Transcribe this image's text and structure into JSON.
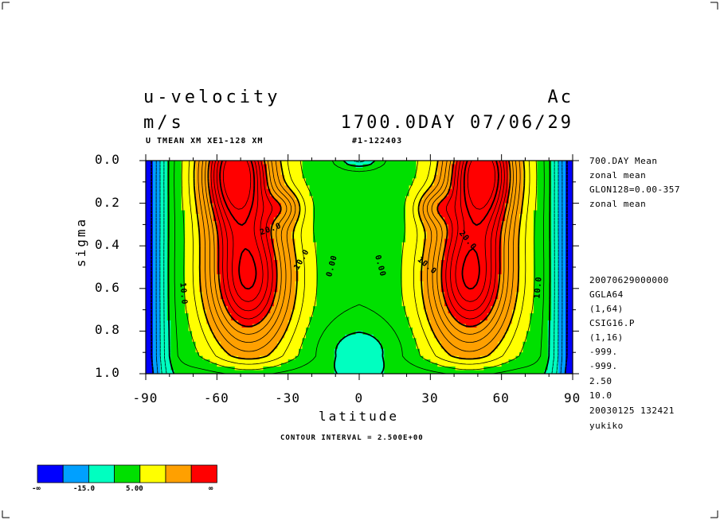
{
  "header": {
    "title_left_1": "u-velocity",
    "title_left_2": "m/s",
    "title_right_1": "Ac",
    "title_right_2": "1700.0DAY 07/06/29",
    "subtitle_left": "U TMEAN XM XE1-128 XM",
    "subtitle_right": "#1-122403"
  },
  "side_info": [
    "700.DAY Mean",
    "zonal mean",
    "GLON128=0.00-357",
    "zonal mean",
    "20070629000000",
    "GGLA64",
    "(1,64)",
    "CSIG16.P",
    "(1,16)",
    "-999.",
    "-999.",
    "2.50",
    "10.0",
    "20030125 132421",
    "yukiko"
  ],
  "contour_interval": "CONTOUR INTERVAL = 2.500E+00",
  "contour_labels": [
    "20.0",
    "10.0",
    "0.00",
    "0.00",
    "10.0",
    "20.0",
    "10.0",
    "10.0"
  ],
  "colorbar": {
    "colors": [
      "#0000ff",
      "#00a0ff",
      "#00ffc0",
      "#00e000",
      "#ffff00",
      "#ffa000",
      "#ff0000"
    ],
    "labels": [
      "-∞",
      "-15.0",
      "5.00",
      "∞"
    ]
  },
  "chart_data": {
    "type": "heatmap",
    "xlabel": "latitude",
    "ylabel": "sigma",
    "x_ticks": [
      "-90",
      "-60",
      "-30",
      "0",
      "30",
      "60",
      "90"
    ],
    "x_tick_values": [
      -90,
      -60,
      -30,
      0,
      30,
      60,
      90
    ],
    "y_ticks": [
      "0.0",
      "0.2",
      "0.4",
      "0.6",
      "0.8",
      "1.0"
    ],
    "y_tick_values": [
      0.0,
      0.2,
      0.4,
      0.6,
      0.8,
      1.0
    ],
    "xlim": [
      -90,
      90
    ],
    "ylim": [
      1.0,
      0.0
    ],
    "contour_interval": 2.5,
    "jets": [
      {
        "lat": -50,
        "sigma": 0.1,
        "max_u": 32
      },
      {
        "lat": 50,
        "sigma": 0.1,
        "max_u": 32
      }
    ],
    "color_levels": [
      -15,
      -10,
      -5,
      0,
      5,
      10,
      15,
      20,
      25,
      30
    ],
    "colors": [
      "#0000ff",
      "#00a0ff",
      "#00ffc0",
      "#00e000",
      "#ffff00",
      "#ffa000",
      "#ff0000"
    ]
  }
}
